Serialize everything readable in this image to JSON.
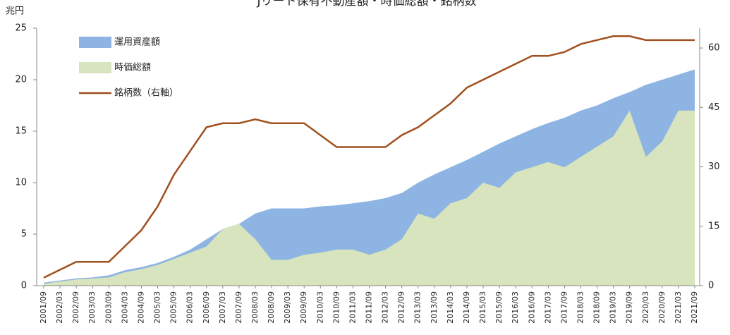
{
  "chart_data": {
    "type": "area_line",
    "title": "Jリート保有不動産額・時価総額・銘柄数",
    "ylabel": "兆円",
    "categories": [
      "2001/09",
      "2002/03",
      "2002/09",
      "2003/03",
      "2003/09",
      "2004/03",
      "2004/09",
      "2005/03",
      "2005/09",
      "2006/03",
      "2006/09",
      "2007/03",
      "2007/09",
      "2008/03",
      "2008/09",
      "2009/03",
      "2009/09",
      "2010/03",
      "2010/09",
      "2011/03",
      "2011/09",
      "2012/03",
      "2012/09",
      "2013/03",
      "2013/09",
      "2014/03",
      "2014/09",
      "2015/03",
      "2015/09",
      "2016/03",
      "2016/09",
      "2017/03",
      "2017/09",
      "2018/03",
      "2018/09",
      "2019/03",
      "2019/09",
      "2020/03",
      "2020/09",
      "2021/03",
      "2021/09"
    ],
    "series": [
      {
        "name": "運用資産額",
        "color": "#8eb4e3",
        "kind": "area",
        "values": [
          0.3,
          0.5,
          0.7,
          0.8,
          1.0,
          1.5,
          1.8,
          2.2,
          2.8,
          3.5,
          4.5,
          5.5,
          6.0,
          7.0,
          7.5,
          7.5,
          7.5,
          7.7,
          7.8,
          8.0,
          8.2,
          8.5,
          9.0,
          10.0,
          10.8,
          11.5,
          12.2,
          13.0,
          13.8,
          14.5,
          15.2,
          15.8,
          16.3,
          17.0,
          17.5,
          18.2,
          18.8,
          19.5,
          20.0,
          20.5,
          21.0
        ]
      },
      {
        "name": "時価総額",
        "color": "#d7e4bd",
        "kind": "area",
        "values": [
          0.2,
          0.4,
          0.6,
          0.7,
          0.8,
          1.3,
          1.6,
          2.0,
          2.6,
          3.2,
          3.8,
          5.5,
          6.0,
          4.5,
          2.5,
          2.5,
          3.0,
          3.2,
          3.5,
          3.5,
          3.0,
          3.5,
          4.5,
          7.0,
          6.5,
          8.0,
          8.5,
          10.0,
          9.5,
          11.0,
          11.5,
          12.0,
          11.5,
          12.5,
          13.5,
          14.5,
          17.0,
          12.5,
          14.0,
          17.0,
          17.0
        ]
      },
      {
        "name": "銘柄数（右軸）",
        "color": "#a0501e",
        "kind": "line",
        "axis": "y2",
        "values": [
          2,
          4,
          6,
          6,
          6,
          10,
          14,
          20,
          28,
          34,
          40,
          41,
          41,
          42,
          41,
          41,
          41,
          38,
          35,
          35,
          35,
          35,
          38,
          40,
          43,
          46,
          50,
          52,
          54,
          56,
          58,
          58,
          59,
          61,
          62,
          63,
          63,
          62,
          62,
          62,
          62
        ]
      }
    ],
    "ylim": [
      0,
      25
    ],
    "yticks": [
      0,
      5,
      10,
      15,
      20,
      25
    ],
    "y2lim": [
      0,
      65
    ],
    "y2ticks": [
      0,
      15,
      30,
      45,
      60
    ],
    "legend": "upper-left"
  }
}
